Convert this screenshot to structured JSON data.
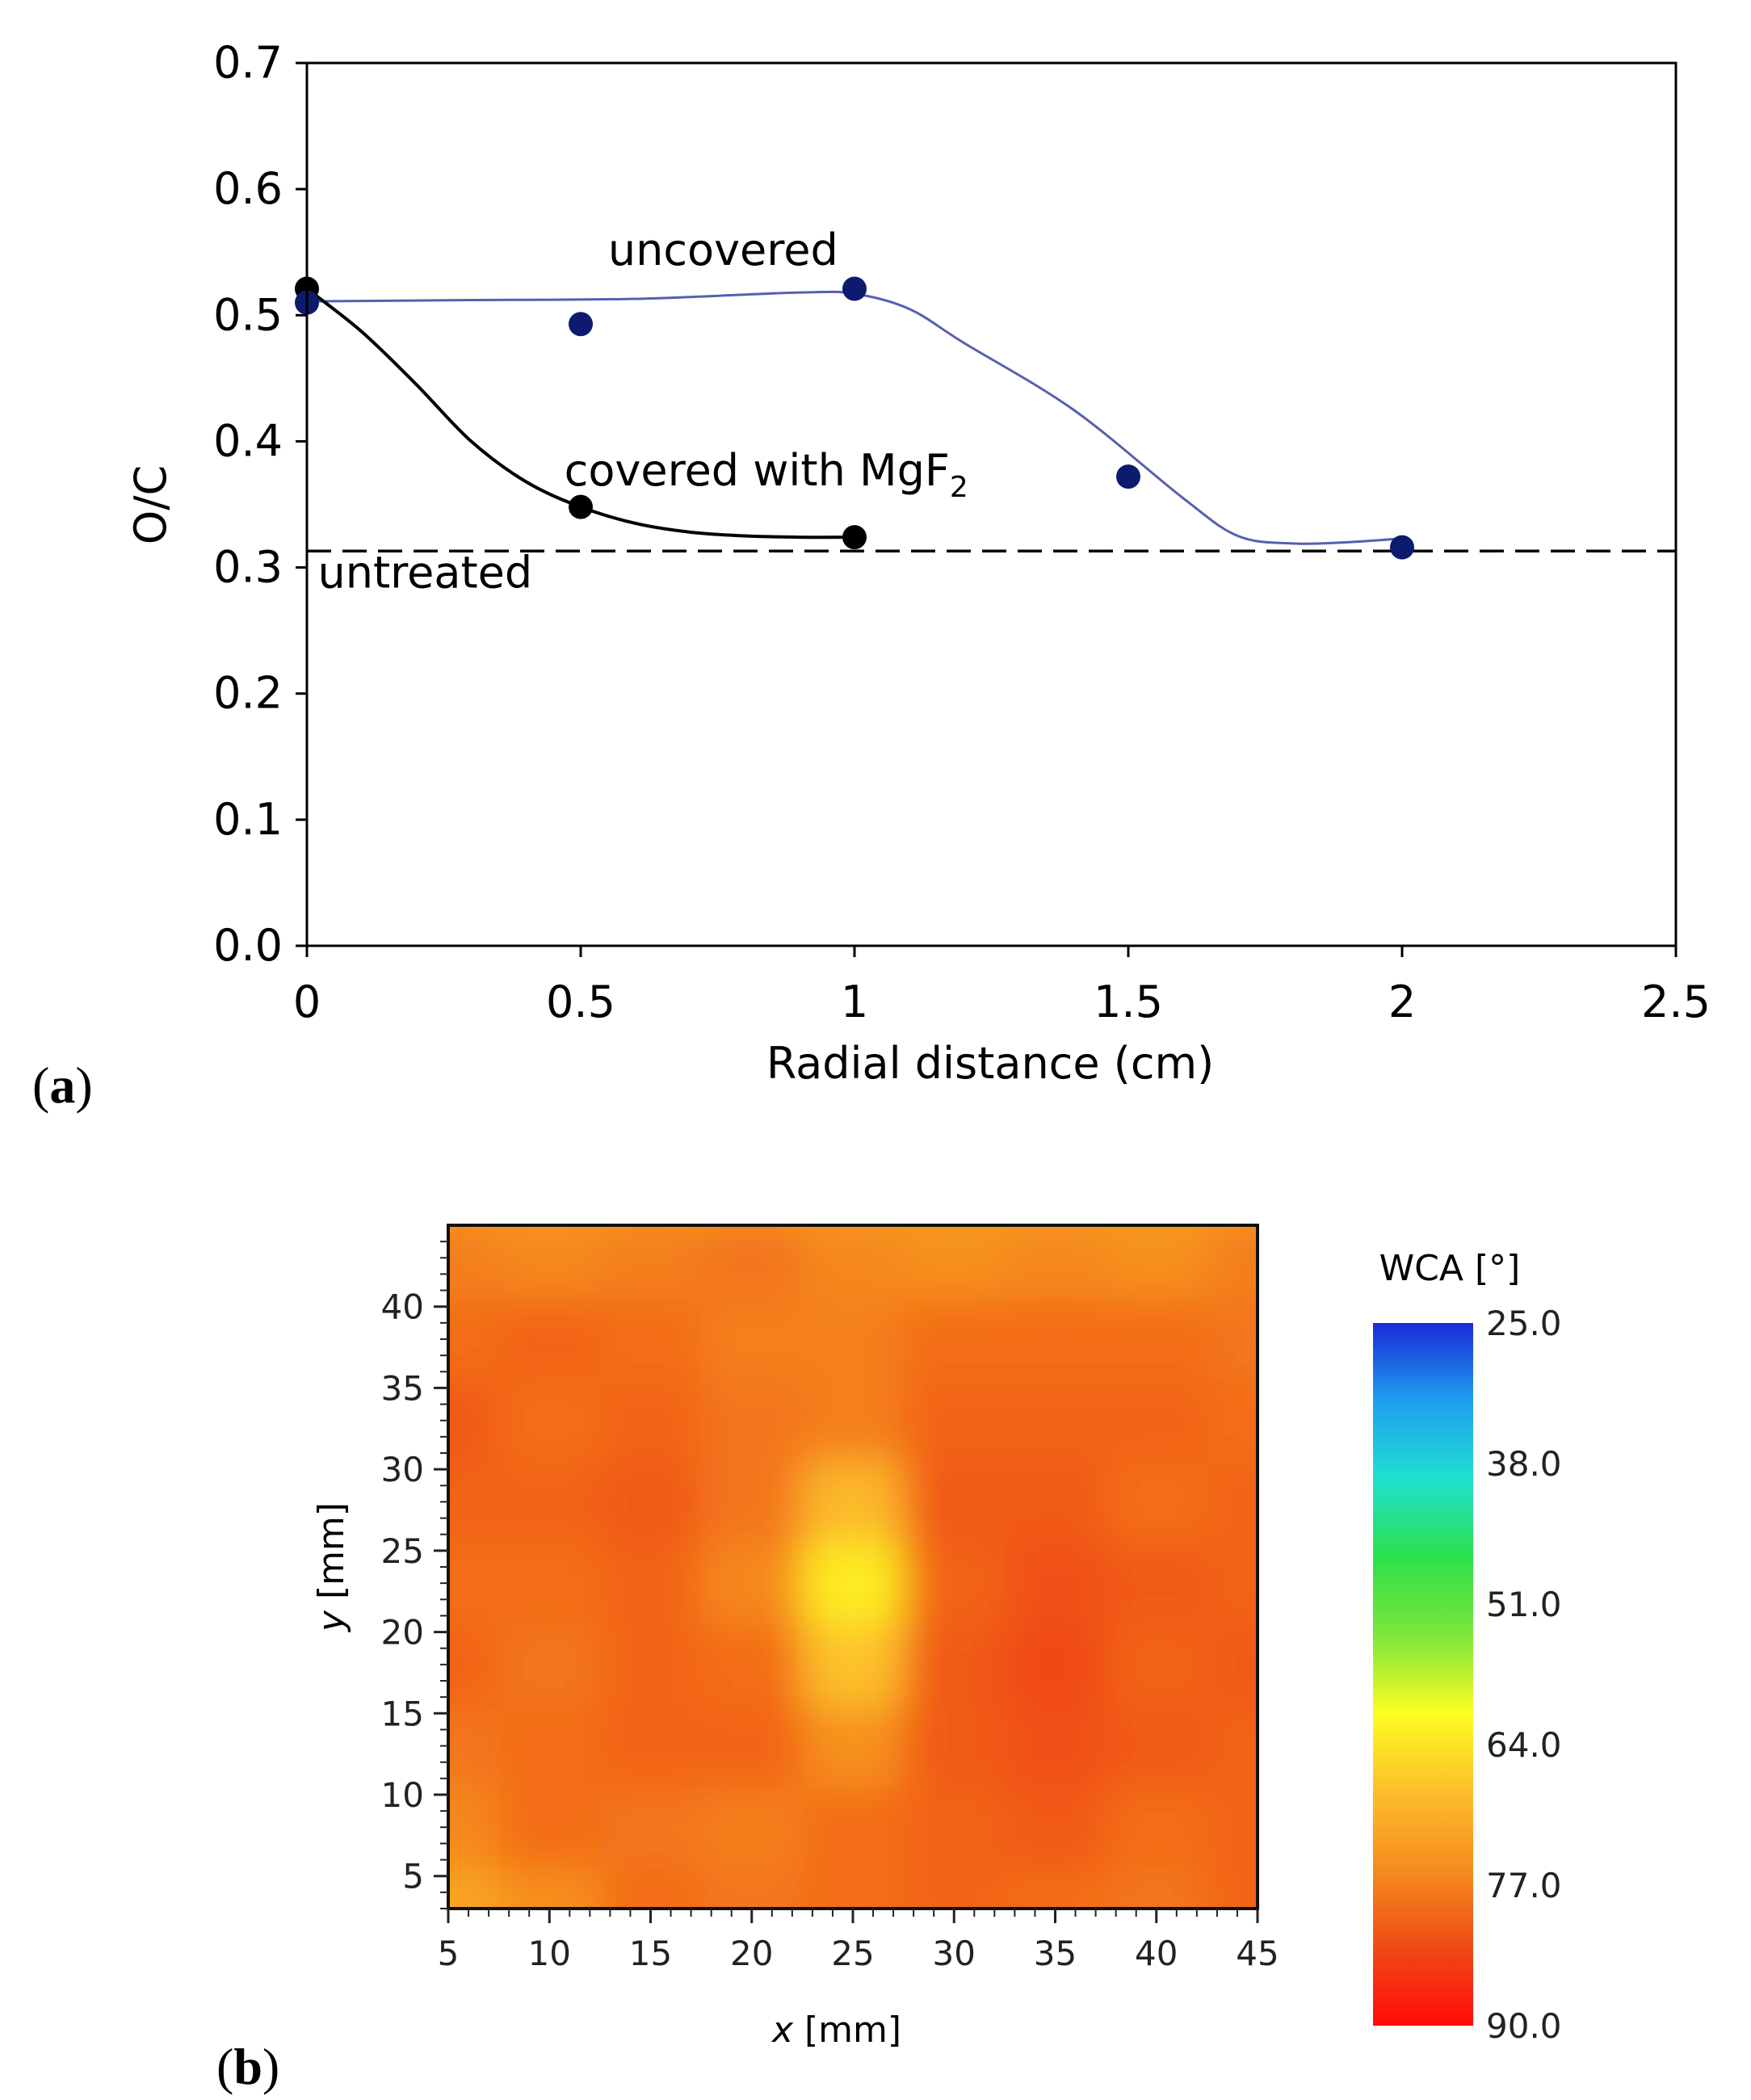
{
  "panels": {
    "a": {
      "label_open": "(",
      "letter": "a",
      "label_close": ")"
    },
    "b": {
      "label_open": "(",
      "letter": "b",
      "label_close": ")"
    }
  },
  "chart_data": [
    {
      "id": "a",
      "type": "scatter",
      "title": "",
      "xlabel": "Radial distance (cm)",
      "ylabel": "O/C",
      "xlim": [
        0,
        2.5
      ],
      "ylim": [
        0,
        0.7
      ],
      "xticks": [
        0,
        0.5,
        1,
        1.5,
        2,
        2.5
      ],
      "xtick_labels": [
        "0",
        "0.5",
        "1",
        "1.5",
        "2",
        "2.5"
      ],
      "yticks": [
        0,
        0.1,
        0.2,
        0.3,
        0.4,
        0.5,
        0.6,
        0.7
      ],
      "ytick_labels": [
        "0.0",
        "0.1",
        "0.2",
        "0.3",
        "0.4",
        "0.5",
        "0.6",
        "0.7"
      ],
      "grid": false,
      "series": [
        {
          "name": "uncovered",
          "color": "#0d1b6e",
          "line_color": "#5560b0",
          "x": [
            0,
            0.5,
            1,
            1.5,
            2
          ],
          "y": [
            0.51,
            0.493,
            0.521,
            0.372,
            0.316
          ],
          "fit_x": [
            0,
            0.3,
            0.6,
            0.9,
            1.0,
            1.1,
            1.2,
            1.4,
            1.6,
            1.7,
            1.8,
            1.9,
            2.0
          ],
          "fit_y": [
            0.511,
            0.512,
            0.513,
            0.518,
            0.517,
            0.505,
            0.478,
            0.425,
            0.355,
            0.325,
            0.319,
            0.32,
            0.323
          ]
        },
        {
          "name": "covered with MgF",
          "color": "#000000",
          "line_color": "#000000",
          "x": [
            0,
            0.5,
            1
          ],
          "y": [
            0.521,
            0.348,
            0.324
          ],
          "fit_x": [
            0,
            0.1,
            0.2,
            0.3,
            0.4,
            0.5,
            0.6,
            0.7,
            0.8,
            0.9,
            1.0
          ],
          "fit_y": [
            0.521,
            0.487,
            0.445,
            0.4,
            0.368,
            0.348,
            0.335,
            0.328,
            0.325,
            0.324,
            0.324
          ]
        }
      ],
      "reference_line": {
        "name": "untreated",
        "y": 0.313,
        "style": "dashed"
      },
      "annotations": {
        "uncovered": {
          "text": "uncovered",
          "x": 0.55,
          "y": 0.54
        },
        "covered": {
          "text": "covered with MgF",
          "subscript": "2",
          "x": 0.47,
          "y": 0.365
        },
        "untreated": {
          "text": "untreated",
          "x": 0.02,
          "y": 0.284
        }
      }
    },
    {
      "id": "b",
      "type": "heatmap",
      "title": "",
      "xlabel_var": "x",
      "xlabel_unit": " [mm]",
      "ylabel_var": "y",
      "ylabel_unit": " [mm]",
      "xlim": [
        5,
        45
      ],
      "ylim": [
        3,
        45
      ],
      "xticks": [
        5,
        10,
        15,
        20,
        25,
        30,
        35,
        40,
        45
      ],
      "xtick_labels": [
        "5",
        "10",
        "15",
        "20",
        "25",
        "30",
        "35",
        "40",
        "45"
      ],
      "yticks": [
        5,
        10,
        15,
        20,
        25,
        30,
        35,
        40
      ],
      "ytick_labels": [
        "5",
        "10",
        "15",
        "20",
        "25",
        "30",
        "35",
        "40"
      ],
      "x": [
        5,
        10,
        15,
        20,
        25,
        30,
        35,
        40,
        45
      ],
      "y": [
        3,
        8,
        13,
        18,
        23,
        28,
        33,
        38,
        43
      ],
      "values": [
        [
          72,
          75,
          79,
          78,
          79,
          80,
          79,
          78,
          80
        ],
        [
          76,
          79,
          78,
          77,
          79,
          80,
          81,
          79,
          80
        ],
        [
          78,
          79,
          80,
          80,
          75,
          81,
          82,
          81,
          80
        ],
        [
          80,
          78,
          80,
          79,
          68,
          81,
          83,
          80,
          81
        ],
        [
          79,
          79,
          80,
          76,
          63,
          80,
          82,
          81,
          80
        ],
        [
          80,
          80,
          81,
          78,
          69,
          81,
          81,
          79,
          80
        ],
        [
          81,
          79,
          80,
          78,
          77,
          80,
          80,
          80,
          79
        ],
        [
          79,
          80,
          79,
          77,
          77,
          79,
          79,
          79,
          78
        ],
        [
          77,
          76,
          77,
          78,
          76,
          75,
          76,
          75,
          77
        ]
      ],
      "colorbar": {
        "title": "WCA [°]",
        "min": 25,
        "max": 90,
        "ticks": [
          25,
          38,
          51,
          64,
          77,
          90
        ],
        "tick_labels": [
          "25.0",
          "38.0",
          "51.0",
          "64.0",
          "77.0",
          "90.0"
        ],
        "colors_top_to_bottom": [
          "#1a2ad6",
          "#1ea0f0",
          "#1fe0d0",
          "#2ce04a",
          "#7de63c",
          "#fdfd22",
          "#fdbe2a",
          "#f58c1e",
          "#f04a14",
          "#ff0a0a"
        ]
      }
    }
  ]
}
